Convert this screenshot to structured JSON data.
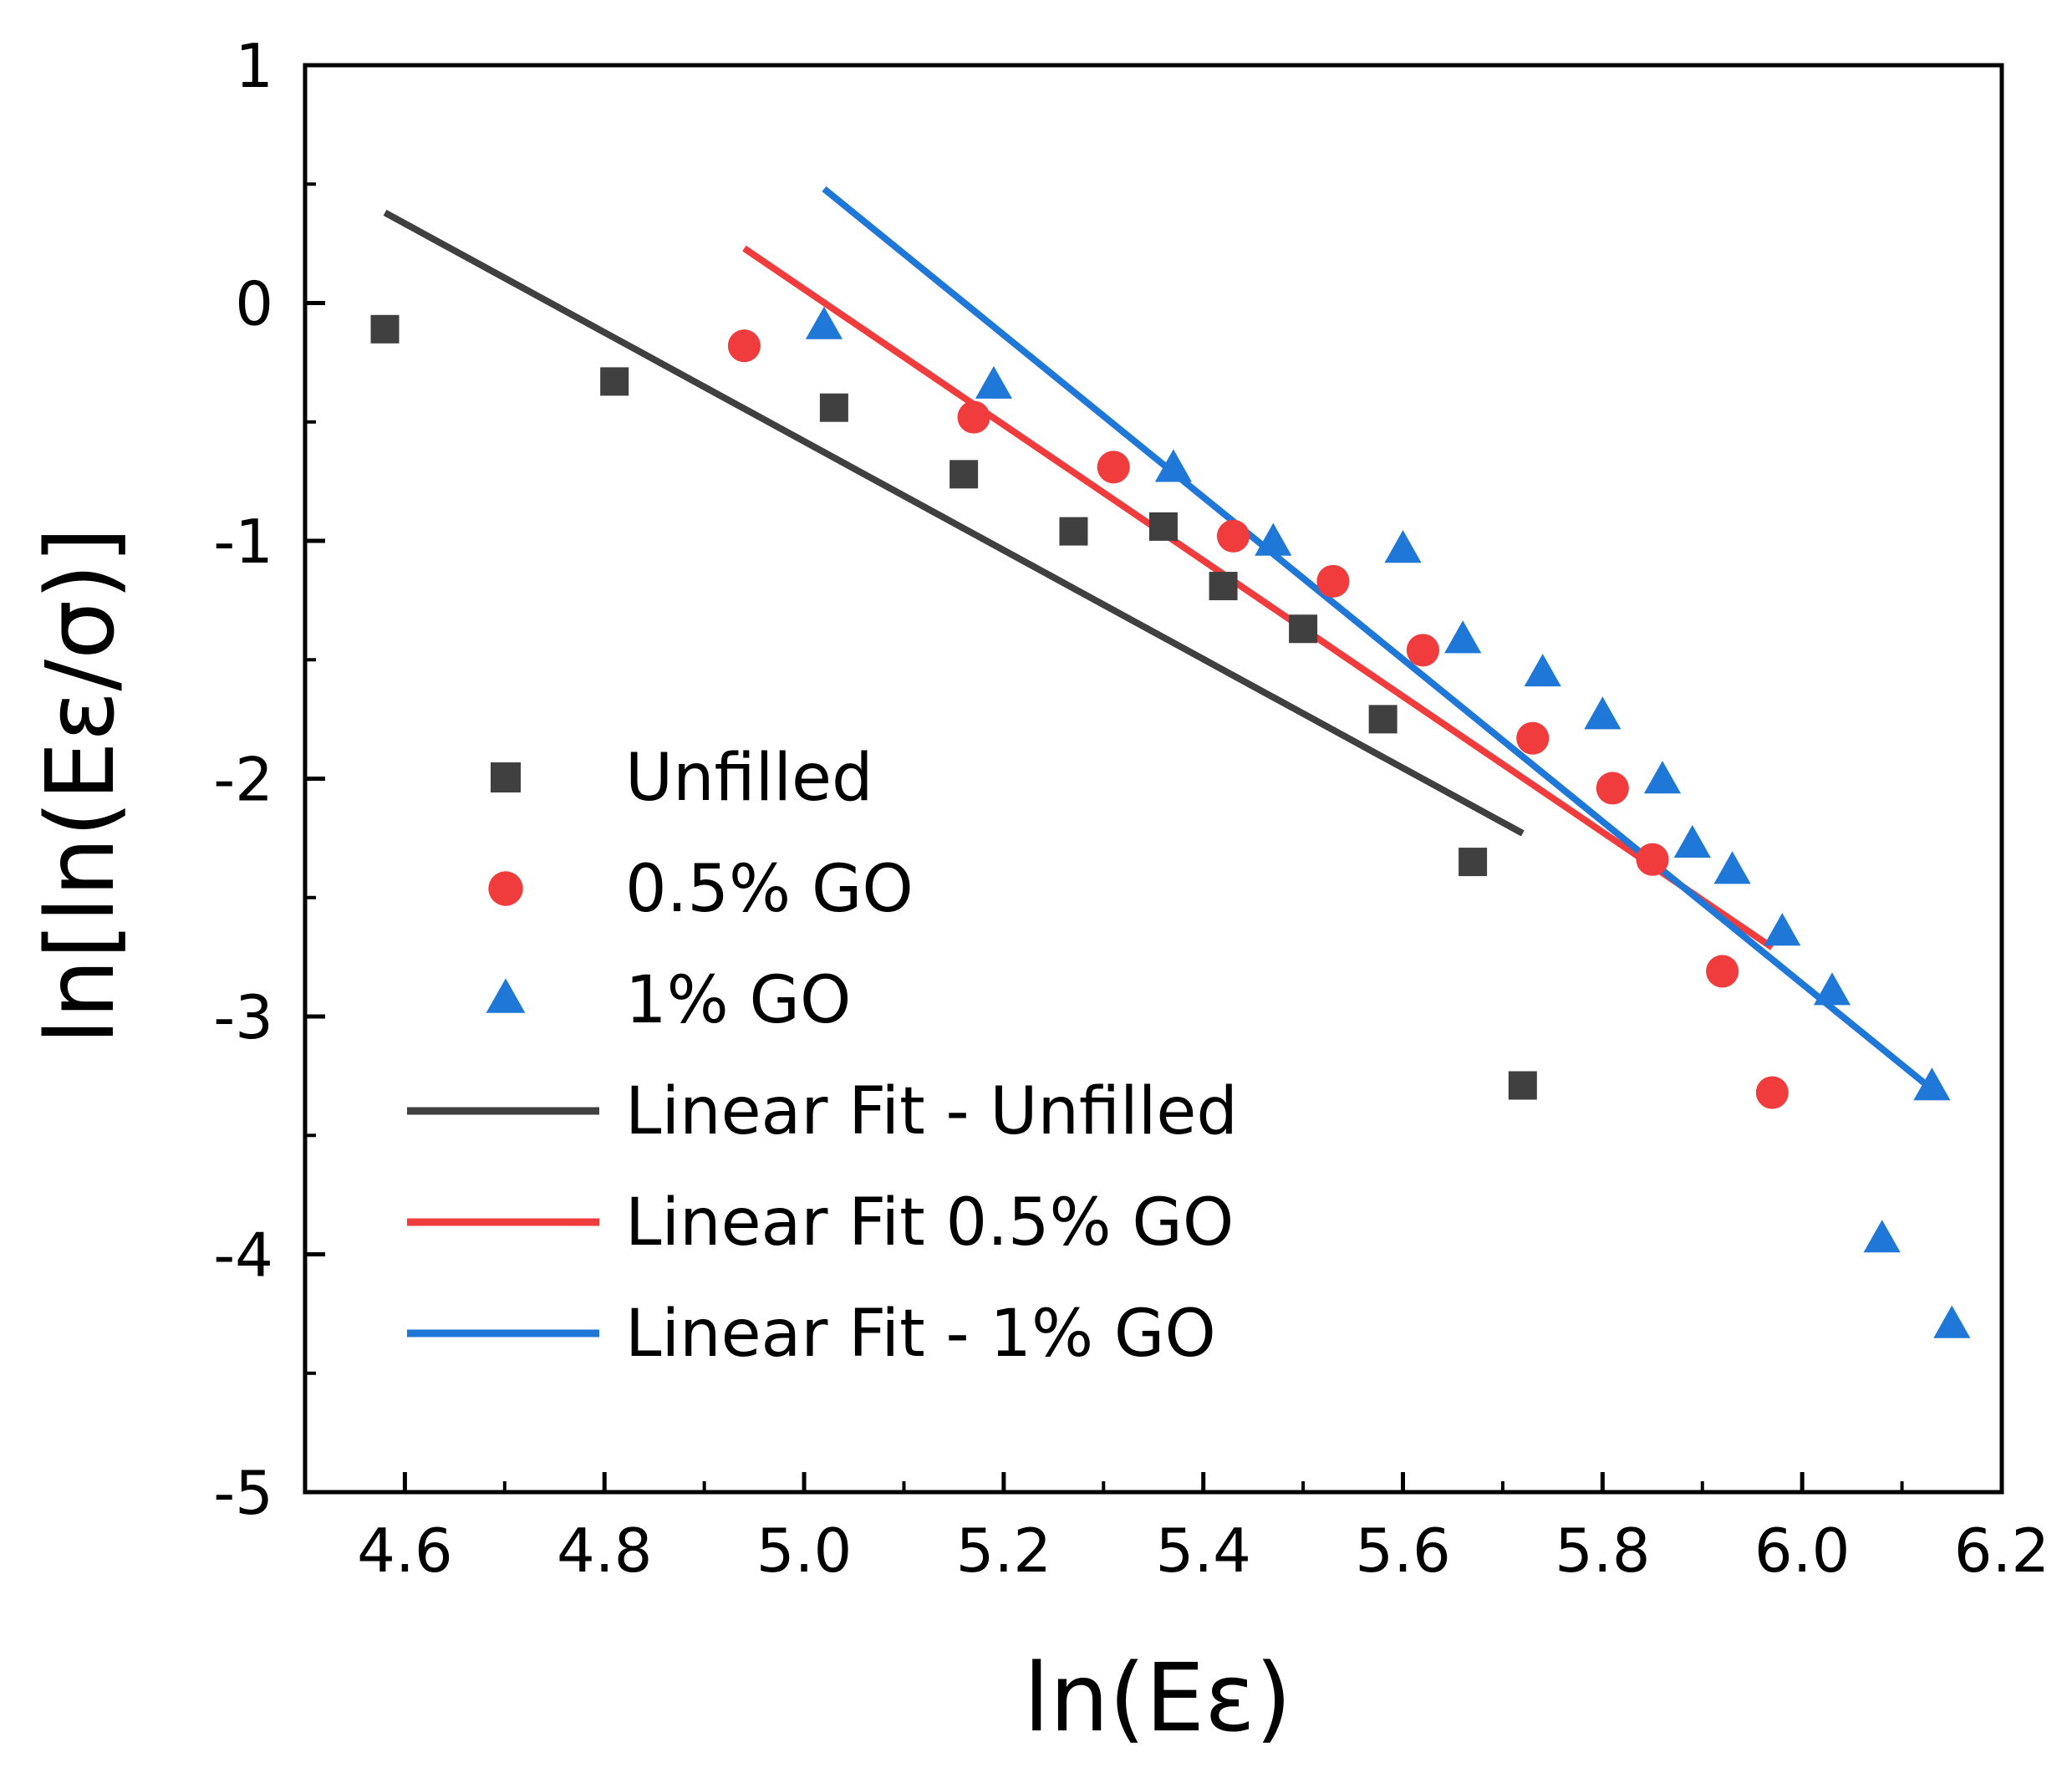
{
  "chart_data": {
    "type": "scatter",
    "xlabel": "ln(Eε)",
    "ylabel": "ln[ln(Eε/σ)]",
    "xlim": [
      4.5,
      6.2
    ],
    "ylim": [
      -5,
      1
    ],
    "xticks": [
      "4.6",
      "4.8",
      "5.0",
      "5.2",
      "5.4",
      "5.6",
      "5.8",
      "6.0",
      "6.2"
    ],
    "yticks": [
      "1",
      "0",
      "-1",
      "-2",
      "-3",
      "-4",
      "-5"
    ],
    "grid": false,
    "legend_position": "lower-left",
    "series": [
      {
        "name": "Unfilled",
        "marker": "square",
        "color": "#404040",
        "points": [
          [
            4.58,
            -0.11
          ],
          [
            4.81,
            -0.33
          ],
          [
            5.03,
            -0.44
          ],
          [
            5.16,
            -0.72
          ],
          [
            5.27,
            -0.96
          ],
          [
            5.36,
            -0.94
          ],
          [
            5.42,
            -1.19
          ],
          [
            5.5,
            -1.37
          ],
          [
            5.58,
            -1.75
          ],
          [
            5.67,
            -2.35
          ],
          [
            5.72,
            -3.29
          ]
        ]
      },
      {
        "name": "0.5% GO",
        "marker": "circle",
        "color": "#f03c3c",
        "points": [
          [
            4.94,
            -0.18
          ],
          [
            5.17,
            -0.48
          ],
          [
            5.31,
            -0.69
          ],
          [
            5.43,
            -0.98
          ],
          [
            5.53,
            -1.17
          ],
          [
            5.62,
            -1.46
          ],
          [
            5.73,
            -1.83
          ],
          [
            5.81,
            -2.04
          ],
          [
            5.85,
            -2.34
          ],
          [
            5.92,
            -2.81
          ],
          [
            5.97,
            -3.32
          ]
        ]
      },
      {
        "name": "1% GO",
        "marker": "triangle",
        "color": "#1f78d8",
        "points": [
          [
            5.02,
            -0.1
          ],
          [
            5.19,
            -0.35
          ],
          [
            5.37,
            -0.7
          ],
          [
            5.47,
            -1.01
          ],
          [
            5.6,
            -1.04
          ],
          [
            5.66,
            -1.42
          ],
          [
            5.74,
            -1.56
          ],
          [
            5.8,
            -1.74
          ],
          [
            5.86,
            -2.01
          ],
          [
            5.89,
            -2.28
          ],
          [
            5.93,
            -2.39
          ],
          [
            5.98,
            -2.65
          ],
          [
            6.03,
            -2.9
          ],
          [
            6.13,
            -3.3
          ],
          [
            6.08,
            -3.94
          ],
          [
            6.15,
            -4.3
          ]
        ]
      }
    ],
    "fits": [
      {
        "name": "Linear Fit - Unfilled",
        "color": "#404040",
        "x": [
          4.58,
          5.72
        ],
        "y": [
          0.38,
          -2.23
        ]
      },
      {
        "name": "Linear Fit 0.5% GO",
        "color": "#f03c3c",
        "x": [
          4.94,
          5.97
        ],
        "y": [
          0.23,
          -2.71
        ]
      },
      {
        "name": "Linear Fit - 1% GO",
        "color": "#1f78d8",
        "x": [
          5.02,
          6.14
        ],
        "y": [
          0.48,
          -3.34
        ]
      }
    ]
  }
}
